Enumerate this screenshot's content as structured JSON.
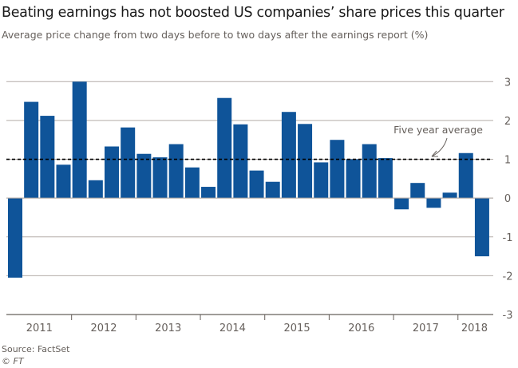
{
  "title": "Beating earnings has not boosted US companies’ share prices this quarter",
  "subtitle": "Average price change from two days before to two days after the earnings report (%)",
  "source": "Source: FactSet",
  "credit": "© FT",
  "colors": {
    "bar": "#0f5499",
    "grid": "#b3aca7",
    "text": "#66605c",
    "average_line": "#000000"
  },
  "chart_data": {
    "type": "bar",
    "title": "Beating earnings has not boosted US companies’ share prices this quarter",
    "ylabel": "Average price change from two days before to two days after the earnings report (%)",
    "ylim": [
      -3,
      3
    ],
    "yticks": [
      "3",
      "2",
      "1",
      "0",
      "-1",
      "-2",
      "-3"
    ],
    "ytick_values": [
      3,
      2,
      1,
      0,
      -1,
      -2,
      -3
    ],
    "y_axis_side": "right",
    "grid": true,
    "year_labels": [
      "2011",
      "2012",
      "2013",
      "2014",
      "2015",
      "2016",
      "2017",
      "2018"
    ],
    "categories": [
      "2011 Q1",
      "2011 Q2",
      "2011 Q3",
      "2011 Q4",
      "2012 Q1",
      "2012 Q2",
      "2012 Q3",
      "2012 Q4",
      "2013 Q1",
      "2013 Q2",
      "2013 Q3",
      "2013 Q4",
      "2014 Q1",
      "2014 Q2",
      "2014 Q3",
      "2014 Q4",
      "2015 Q1",
      "2015 Q2",
      "2015 Q3",
      "2015 Q4",
      "2016 Q1",
      "2016 Q2",
      "2016 Q3",
      "2016 Q4",
      "2017 Q1",
      "2017 Q2",
      "2017 Q3",
      "2017 Q4",
      "2018 Q1",
      "2018 Q2"
    ],
    "values": [
      -2.05,
      2.48,
      2.12,
      0.86,
      3.0,
      0.46,
      1.33,
      1.82,
      1.14,
      1.05,
      1.39,
      0.79,
      0.29,
      2.58,
      1.9,
      0.71,
      0.42,
      2.22,
      1.91,
      0.92,
      1.5,
      1.0,
      1.39,
      1.03,
      -0.29,
      0.39,
      -0.25,
      0.14,
      1.16,
      -1.5
    ],
    "reference_line": {
      "label": "Five year average",
      "value": 1.0,
      "style": "dashed"
    }
  }
}
